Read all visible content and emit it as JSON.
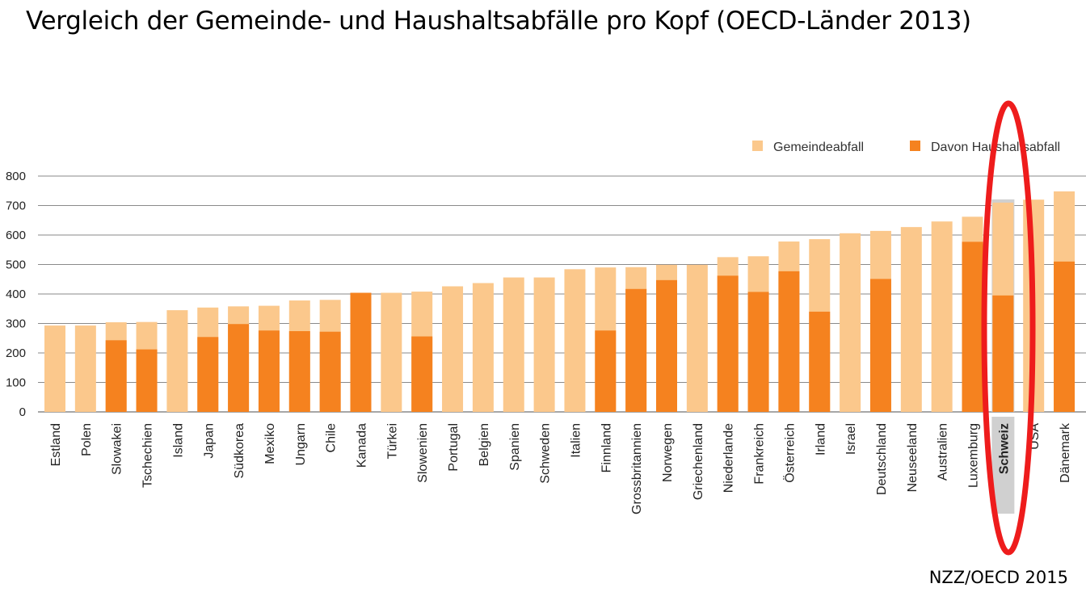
{
  "title": "Vergleich der Gemeinde- und Haushaltsabfälle pro Kopf (OECD-Länder 2013)",
  "source": "NZZ/OECD 2015",
  "colors": {
    "municipal": "#fbc88c",
    "household": "#f5821f",
    "grid": "#8a8a8a",
    "highlight_band": "#d0d0d0",
    "highlight_ellipse": "#ee1c1c"
  },
  "chart_data": {
    "type": "bar",
    "title": "",
    "xlabel": "",
    "ylabel": "",
    "ylim": [
      0,
      800
    ],
    "yticks": [
      0,
      100,
      200,
      300,
      400,
      500,
      600,
      700,
      800
    ],
    "grid": true,
    "legend_position": "top-right",
    "highlighted_category": "Schweiz",
    "categories": [
      "Estland",
      "Polen",
      "Slowakei",
      "Tschechien",
      "Island",
      "Japan",
      "Südkorea",
      "Mexiko",
      "Ungarn",
      "Chile",
      "Kanada",
      "Türkei",
      "Slowenien",
      "Portugal",
      "Belgien",
      "Spanien",
      "Schweden",
      "Italien",
      "Finnland",
      "Grossbritannien",
      "Norwegen",
      "Griechenland",
      "Niederlande",
      "Frankreich",
      "Österreich",
      "Irland",
      "Israel",
      "Deutschland",
      "Neuseeland",
      "Australien",
      "Luxemburg",
      "Schweiz",
      "USA",
      "Dänemark"
    ],
    "series": [
      {
        "name": "Gemeindeabfall",
        "values": [
          293,
          293,
          304,
          305,
          345,
          354,
          358,
          360,
          378,
          380,
          404,
          404,
          408,
          426,
          437,
          456,
          456,
          484,
          490,
          491,
          499,
          499,
          525,
          528,
          578,
          586,
          606,
          614,
          627,
          646,
          662,
          710,
          720,
          748
        ]
      },
      {
        "name": "Davon Haushaltsabfall",
        "values": [
          null,
          null,
          243,
          212,
          null,
          254,
          298,
          276,
          274,
          272,
          404,
          null,
          256,
          null,
          null,
          null,
          null,
          null,
          276,
          417,
          447,
          null,
          462,
          407,
          477,
          340,
          null,
          451,
          null,
          null,
          577,
          395,
          null,
          510
        ]
      }
    ]
  }
}
